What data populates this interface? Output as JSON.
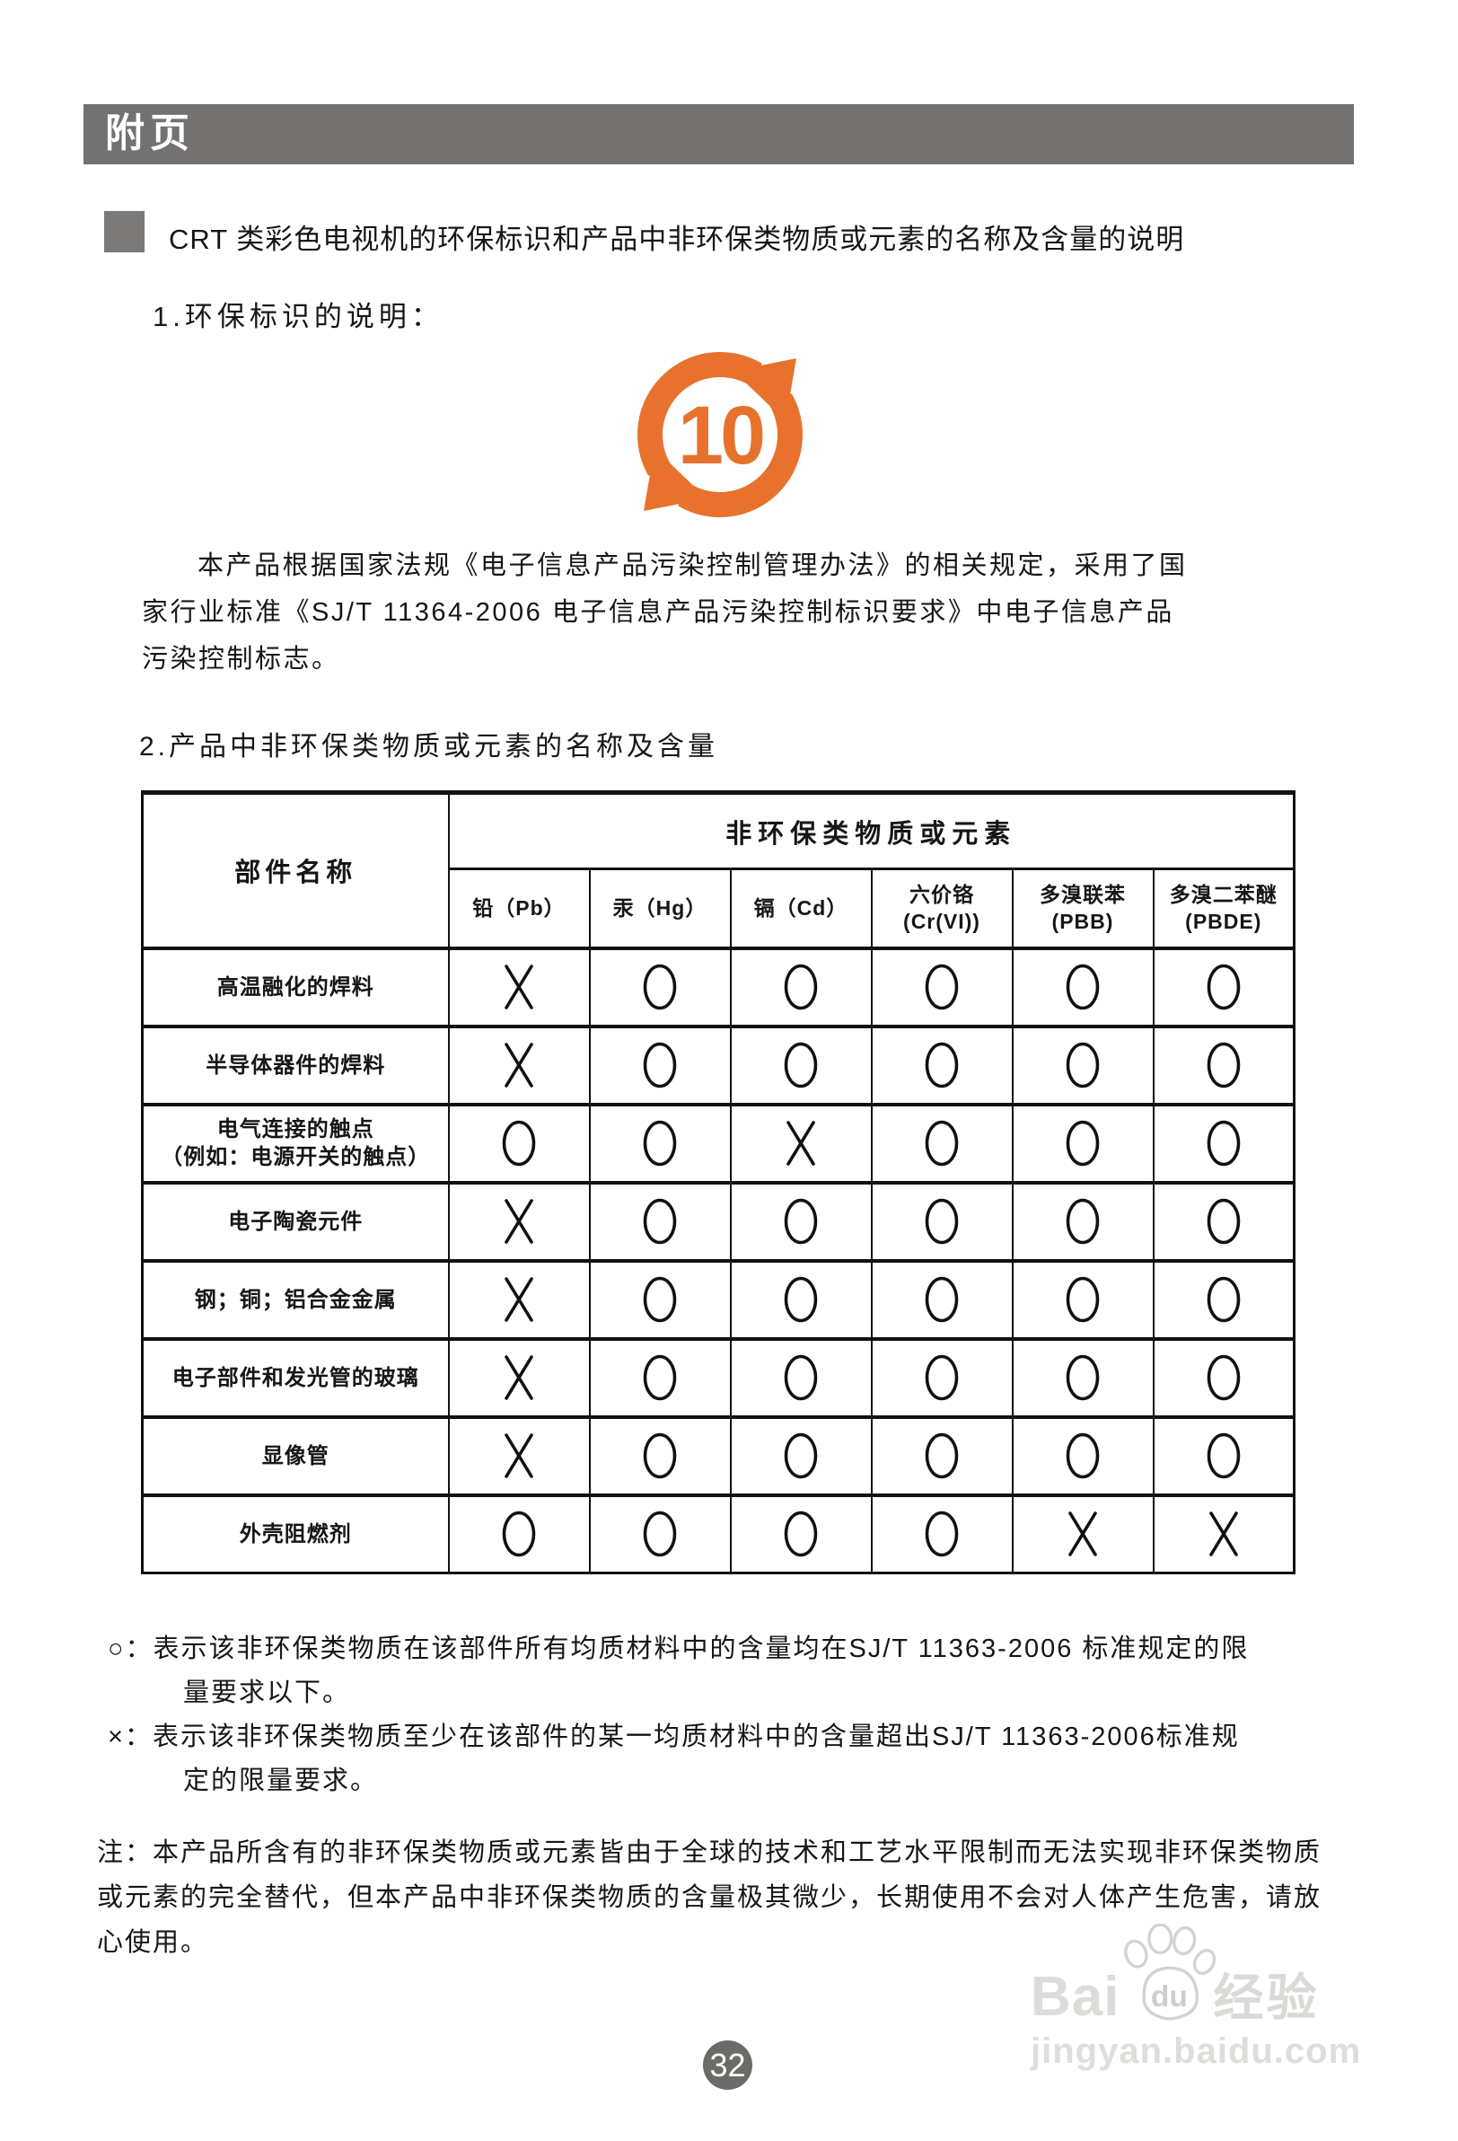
{
  "header_bar": {
    "label": "附页",
    "color": "#737270"
  },
  "title": {
    "text": "CRT 类彩色电视机的环保标识和产品中非环保类物质或元素的名称及含量的说明"
  },
  "section1": {
    "heading": "1.环保标识的说明：",
    "logo_number": "10",
    "logo_color": "#E8722D",
    "paragraph_lines": [
      "本产品根据国家法规《电子信息产品污染控制管理办法》的相关规定，采用了国",
      "家行业标准《SJ/T 11364-2006 电子信息产品污染控制标识要求》中电子信息产品",
      "污染控制标志。"
    ]
  },
  "section2": {
    "heading": "2.产品中非环保类物质或元素的名称及含量",
    "table": {
      "corner_header": "部件名称",
      "group_header": "非环保类物质或元素",
      "columns": [
        "铅（Pb）",
        "汞（Hg）",
        "镉（Cd）",
        "六价铬\n(Cr(VI))",
        "多溴联苯\n(PBB)",
        "多溴二苯醚\n(PBDE)"
      ],
      "rows": [
        {
          "part": "高温融化的焊料",
          "marks": [
            "x",
            "o",
            "o",
            "o",
            "o",
            "o"
          ]
        },
        {
          "part": "半导体器件的焊料",
          "marks": [
            "x",
            "o",
            "o",
            "o",
            "o",
            "o"
          ]
        },
        {
          "part": "电气连接的触点\n（例如：电源开关的触点）",
          "marks": [
            "o",
            "o",
            "x",
            "o",
            "o",
            "o"
          ]
        },
        {
          "part": "电子陶瓷元件",
          "marks": [
            "x",
            "o",
            "o",
            "o",
            "o",
            "o"
          ]
        },
        {
          "part": "钢；铜；铝合金金属",
          "marks": [
            "x",
            "o",
            "o",
            "o",
            "o",
            "o"
          ]
        },
        {
          "part": "电子部件和发光管的玻璃",
          "marks": [
            "x",
            "o",
            "o",
            "o",
            "o",
            "o"
          ]
        },
        {
          "part": "显像管",
          "marks": [
            "x",
            "o",
            "o",
            "o",
            "o",
            "o"
          ]
        },
        {
          "part": "外壳阻燃剂",
          "marks": [
            "o",
            "o",
            "o",
            "o",
            "x",
            "x"
          ]
        }
      ]
    }
  },
  "legend": [
    {
      "symbol": "○：",
      "text": "表示该非环保类物质在该部件所有均质材料中的含量均在SJ/T 11363-2006 标准规定的限",
      "wrap": "量要求以下。"
    },
    {
      "symbol": "×：",
      "text": "表示该非环保类物质至少在该部件的某一均质材料中的含量超出SJ/T 11363-2006标准规",
      "wrap": "定的限量要求。"
    }
  ],
  "note_lines": [
    "注：本产品所含有的非环保类物质或元素皆由于全球的技术和工艺水平限制而无法实现非环保类物质",
    "或元素的完全替代，但本产品中非环保类物质的含量极其微少，长期使用不会对人体产生危害，请放",
    "心使用。"
  ],
  "watermark": {
    "brand_left": "Bai",
    "brand_paw": "du",
    "brand_cn": "经验",
    "url": "jingyan.baidu.com"
  },
  "page_number": "32"
}
